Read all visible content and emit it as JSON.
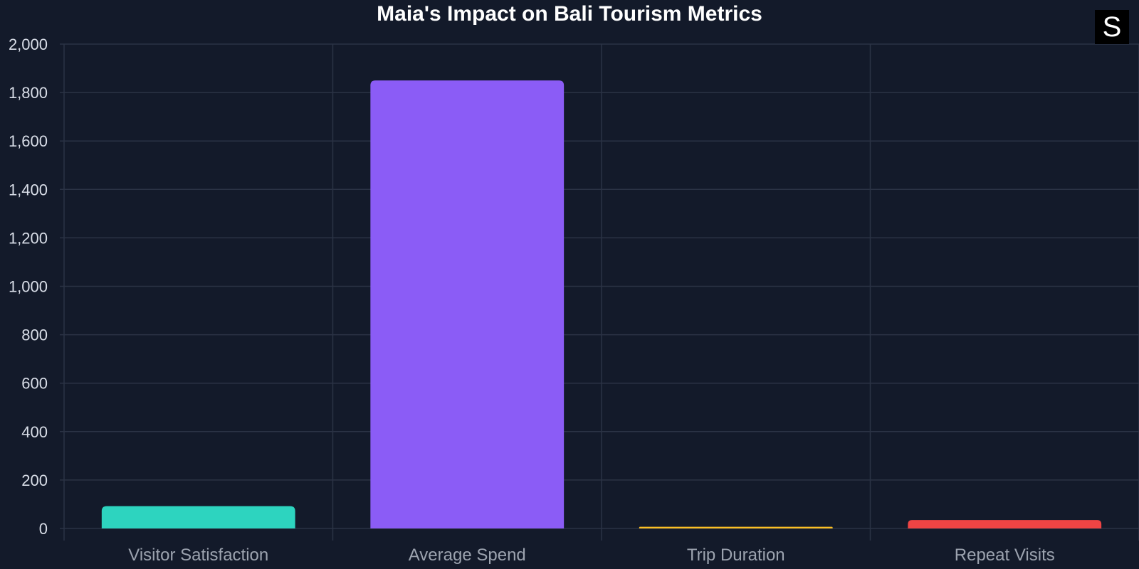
{
  "badge": {
    "text": "S"
  },
  "chart_data": {
    "type": "bar",
    "title": "Maia's Impact on Bali Tourism Metrics",
    "categories": [
      "Visitor Satisfaction",
      "Average Spend",
      "Trip Duration",
      "Repeat Visits"
    ],
    "values": [
      92,
      1850,
      7,
      35
    ],
    "colors": [
      "#2dd4bf",
      "#8b5cf6",
      "#fbbf24",
      "#ef4444"
    ],
    "ylim": [
      0,
      2000
    ],
    "yticks": [
      0,
      200,
      400,
      600,
      800,
      1000,
      1200,
      1400,
      1600,
      1800,
      2000
    ],
    "grid": true,
    "xlabel": "",
    "ylabel": ""
  }
}
